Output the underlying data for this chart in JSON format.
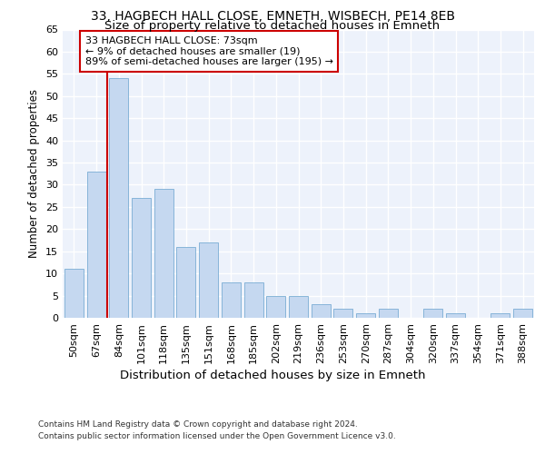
{
  "title_line1": "33, HAGBECH HALL CLOSE, EMNETH, WISBECH, PE14 8EB",
  "title_line2": "Size of property relative to detached houses in Emneth",
  "xlabel": "Distribution of detached houses by size in Emneth",
  "ylabel": "Number of detached properties",
  "categories": [
    "50sqm",
    "67sqm",
    "84sqm",
    "101sqm",
    "118sqm",
    "135sqm",
    "151sqm",
    "168sqm",
    "185sqm",
    "202sqm",
    "219sqm",
    "236sqm",
    "253sqm",
    "270sqm",
    "287sqm",
    "304sqm",
    "320sqm",
    "337sqm",
    "354sqm",
    "371sqm",
    "388sqm"
  ],
  "values": [
    11,
    33,
    54,
    27,
    29,
    16,
    17,
    8,
    8,
    5,
    5,
    3,
    2,
    1,
    2,
    0,
    2,
    1,
    0,
    1,
    2
  ],
  "bar_color": "#c5d8f0",
  "bar_edge_color": "#7aadd4",
  "property_line_color": "#cc0000",
  "annotation_text": "33 HAGBECH HALL CLOSE: 73sqm\n← 9% of detached houses are smaller (19)\n89% of semi-detached houses are larger (195) →",
  "annotation_box_color": "#ffffff",
  "annotation_box_edge_color": "#cc0000",
  "ylim": [
    0,
    65
  ],
  "yticks": [
    0,
    5,
    10,
    15,
    20,
    25,
    30,
    35,
    40,
    45,
    50,
    55,
    60,
    65
  ],
  "footer_line1": "Contains HM Land Registry data © Crown copyright and database right 2024.",
  "footer_line2": "Contains public sector information licensed under the Open Government Licence v3.0.",
  "background_color": "#edf2fb",
  "grid_color": "#ffffff",
  "title_fontsize": 10,
  "subtitle_fontsize": 9.5,
  "tick_fontsize": 8,
  "ylabel_fontsize": 8.5,
  "xlabel_fontsize": 9.5,
  "footer_fontsize": 6.5
}
